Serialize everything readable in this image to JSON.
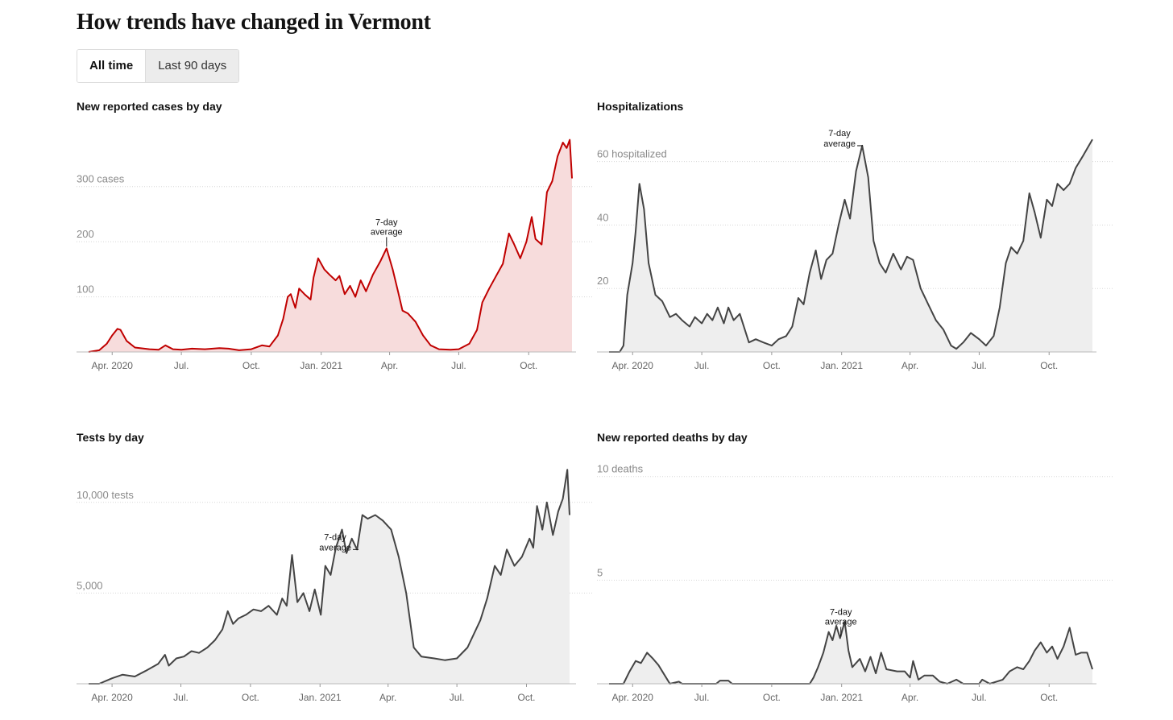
{
  "page": {
    "title": "How trends have changed in Vermont"
  },
  "toggle": {
    "options": [
      "All time",
      "Last 90 days"
    ],
    "selected": "All time"
  },
  "colors": {
    "cases_line": "#c00000",
    "cases_fill": "#f7dcdc",
    "gray_line": "#444444",
    "gray_fill": "#eeeeee",
    "grid": "#d8d8d8"
  },
  "annotation": {
    "line1": "7-day",
    "line2": "average"
  },
  "x_axis": {
    "start": "2020-03-01",
    "end": "2021-11-27",
    "ticks": [
      {
        "label": "Apr. 2020",
        "date": "2020-04-01"
      },
      {
        "label": "Jul.",
        "date": "2020-07-01"
      },
      {
        "label": "Oct.",
        "date": "2020-10-01"
      },
      {
        "label": "Jan. 2021",
        "date": "2021-01-01"
      },
      {
        "label": "Apr.",
        "date": "2021-04-01"
      },
      {
        "label": "Jul.",
        "date": "2021-07-01"
      },
      {
        "label": "Oct.",
        "date": "2021-10-01"
      }
    ]
  },
  "chart_data": [
    {
      "id": "cases",
      "type": "area",
      "title": "New reported cases by day",
      "series_name": "7-day average",
      "ylim": [
        0,
        380
      ],
      "y_ticks": [
        {
          "value": 100,
          "label": "100"
        },
        {
          "value": 200,
          "label": "200"
        },
        {
          "value": 300,
          "label": "300 cases"
        }
      ],
      "annotation_date": "2021-03-28",
      "points": [
        [
          "2020-03-01",
          0
        ],
        [
          "2020-03-15",
          3
        ],
        [
          "2020-03-25",
          15
        ],
        [
          "2020-04-01",
          30
        ],
        [
          "2020-04-08",
          42
        ],
        [
          "2020-04-12",
          40
        ],
        [
          "2020-04-20",
          20
        ],
        [
          "2020-05-01",
          8
        ],
        [
          "2020-05-20",
          5
        ],
        [
          "2020-06-01",
          4
        ],
        [
          "2020-06-10",
          12
        ],
        [
          "2020-06-20",
          5
        ],
        [
          "2020-07-01",
          4
        ],
        [
          "2020-07-15",
          6
        ],
        [
          "2020-08-01",
          5
        ],
        [
          "2020-08-20",
          7
        ],
        [
          "2020-09-01",
          6
        ],
        [
          "2020-09-15",
          3
        ],
        [
          "2020-10-01",
          5
        ],
        [
          "2020-10-15",
          12
        ],
        [
          "2020-10-25",
          10
        ],
        [
          "2020-11-05",
          30
        ],
        [
          "2020-11-12",
          60
        ],
        [
          "2020-11-18",
          100
        ],
        [
          "2020-11-22",
          105
        ],
        [
          "2020-11-28",
          80
        ],
        [
          "2020-12-03",
          115
        ],
        [
          "2020-12-10",
          105
        ],
        [
          "2020-12-18",
          95
        ],
        [
          "2020-12-22",
          135
        ],
        [
          "2020-12-28",
          170
        ],
        [
          "2021-01-05",
          150
        ],
        [
          "2021-01-12",
          140
        ],
        [
          "2021-01-20",
          130
        ],
        [
          "2021-01-25",
          138
        ],
        [
          "2021-02-01",
          105
        ],
        [
          "2021-02-08",
          120
        ],
        [
          "2021-02-15",
          100
        ],
        [
          "2021-02-22",
          130
        ],
        [
          "2021-03-01",
          110
        ],
        [
          "2021-03-10",
          140
        ],
        [
          "2021-03-20",
          165
        ],
        [
          "2021-03-28",
          188
        ],
        [
          "2021-04-05",
          150
        ],
        [
          "2021-04-12",
          110
        ],
        [
          "2021-04-18",
          75
        ],
        [
          "2021-04-25",
          70
        ],
        [
          "2021-05-05",
          55
        ],
        [
          "2021-05-15",
          30
        ],
        [
          "2021-05-25",
          12
        ],
        [
          "2021-06-05",
          5
        ],
        [
          "2021-06-20",
          4
        ],
        [
          "2021-07-01",
          5
        ],
        [
          "2021-07-15",
          15
        ],
        [
          "2021-07-25",
          40
        ],
        [
          "2021-08-01",
          90
        ],
        [
          "2021-08-10",
          115
        ],
        [
          "2021-08-20",
          140
        ],
        [
          "2021-08-28",
          160
        ],
        [
          "2021-09-05",
          215
        ],
        [
          "2021-09-12",
          195
        ],
        [
          "2021-09-20",
          170
        ],
        [
          "2021-09-28",
          200
        ],
        [
          "2021-10-05",
          245
        ],
        [
          "2021-10-10",
          205
        ],
        [
          "2021-10-18",
          195
        ],
        [
          "2021-10-25",
          290
        ],
        [
          "2021-11-01",
          310
        ],
        [
          "2021-11-08",
          355
        ],
        [
          "2021-11-15",
          380
        ],
        [
          "2021-11-20",
          370
        ],
        [
          "2021-11-24",
          385
        ],
        [
          "2021-11-27",
          315
        ]
      ]
    },
    {
      "id": "hosp",
      "type": "area",
      "title": "Hospitalizations",
      "series_name": "7-day average",
      "ylim": [
        0,
        66
      ],
      "y_ticks": [
        {
          "value": 20,
          "label": "20"
        },
        {
          "value": 40,
          "label": "40"
        },
        {
          "value": 60,
          "label": "60 hospitalized"
        }
      ],
      "annotation_date": "2021-01-30",
      "points": [
        [
          "2020-03-01",
          0
        ],
        [
          "2020-03-15",
          0
        ],
        [
          "2020-03-20",
          2
        ],
        [
          "2020-03-25",
          18
        ],
        [
          "2020-04-01",
          28
        ],
        [
          "2020-04-05",
          38
        ],
        [
          "2020-04-10",
          53
        ],
        [
          "2020-04-16",
          45
        ],
        [
          "2020-04-22",
          28
        ],
        [
          "2020-05-01",
          18
        ],
        [
          "2020-05-10",
          16
        ],
        [
          "2020-05-20",
          11
        ],
        [
          "2020-05-28",
          12
        ],
        [
          "2020-06-05",
          10
        ],
        [
          "2020-06-15",
          8
        ],
        [
          "2020-06-22",
          11
        ],
        [
          "2020-07-01",
          9
        ],
        [
          "2020-07-08",
          12
        ],
        [
          "2020-07-15",
          10
        ],
        [
          "2020-07-22",
          14
        ],
        [
          "2020-07-30",
          9
        ],
        [
          "2020-08-05",
          14
        ],
        [
          "2020-08-12",
          10
        ],
        [
          "2020-08-20",
          12
        ],
        [
          "2020-09-01",
          3
        ],
        [
          "2020-09-10",
          4
        ],
        [
          "2020-09-20",
          3
        ],
        [
          "2020-10-01",
          2
        ],
        [
          "2020-10-10",
          4
        ],
        [
          "2020-10-20",
          5
        ],
        [
          "2020-10-28",
          8
        ],
        [
          "2020-11-05",
          17
        ],
        [
          "2020-11-12",
          15
        ],
        [
          "2020-11-20",
          25
        ],
        [
          "2020-11-28",
          32
        ],
        [
          "2020-12-05",
          23
        ],
        [
          "2020-12-12",
          29
        ],
        [
          "2020-12-20",
          31
        ],
        [
          "2020-12-28",
          40
        ],
        [
          "2021-01-05",
          48
        ],
        [
          "2021-01-12",
          42
        ],
        [
          "2021-01-20",
          57
        ],
        [
          "2021-01-28",
          65
        ],
        [
          "2021-02-05",
          55
        ],
        [
          "2021-02-12",
          35
        ],
        [
          "2021-02-20",
          28
        ],
        [
          "2021-02-28",
          25
        ],
        [
          "2021-03-10",
          31
        ],
        [
          "2021-03-20",
          26
        ],
        [
          "2021-03-28",
          30
        ],
        [
          "2021-04-05",
          29
        ],
        [
          "2021-04-15",
          20
        ],
        [
          "2021-04-25",
          15
        ],
        [
          "2021-05-05",
          10
        ],
        [
          "2021-05-15",
          7
        ],
        [
          "2021-05-25",
          2
        ],
        [
          "2021-06-01",
          1
        ],
        [
          "2021-06-10",
          3
        ],
        [
          "2021-06-20",
          6
        ],
        [
          "2021-07-01",
          4
        ],
        [
          "2021-07-10",
          2
        ],
        [
          "2021-07-20",
          5
        ],
        [
          "2021-07-28",
          14
        ],
        [
          "2021-08-05",
          28
        ],
        [
          "2021-08-12",
          33
        ],
        [
          "2021-08-20",
          31
        ],
        [
          "2021-08-28",
          35
        ],
        [
          "2021-09-05",
          50
        ],
        [
          "2021-09-12",
          44
        ],
        [
          "2021-09-20",
          36
        ],
        [
          "2021-09-28",
          48
        ],
        [
          "2021-10-05",
          46
        ],
        [
          "2021-10-12",
          53
        ],
        [
          "2021-10-20",
          51
        ],
        [
          "2021-10-28",
          53
        ],
        [
          "2021-11-05",
          58
        ],
        [
          "2021-11-15",
          62
        ],
        [
          "2021-11-27",
          67
        ]
      ]
    },
    {
      "id": "tests",
      "type": "area",
      "title": "Tests by day",
      "series_name": "7-day average",
      "ylim": [
        0,
        11500
      ],
      "y_ticks": [
        {
          "value": 5000,
          "label": "5,000"
        },
        {
          "value": 10000,
          "label": "10,000 tests"
        }
      ],
      "annotation_date": "2021-02-22",
      "points": [
        [
          "2020-03-01",
          0
        ],
        [
          "2020-03-15",
          0
        ],
        [
          "2020-04-01",
          300
        ],
        [
          "2020-04-15",
          500
        ],
        [
          "2020-05-01",
          400
        ],
        [
          "2020-05-15",
          700
        ],
        [
          "2020-06-01",
          1100
        ],
        [
          "2020-06-10",
          1600
        ],
        [
          "2020-06-15",
          1000
        ],
        [
          "2020-06-25",
          1400
        ],
        [
          "2020-07-05",
          1500
        ],
        [
          "2020-07-15",
          1800
        ],
        [
          "2020-07-25",
          1700
        ],
        [
          "2020-08-05",
          2000
        ],
        [
          "2020-08-15",
          2400
        ],
        [
          "2020-08-25",
          3000
        ],
        [
          "2020-09-01",
          4000
        ],
        [
          "2020-09-08",
          3300
        ],
        [
          "2020-09-15",
          3600
        ],
        [
          "2020-09-25",
          3800
        ],
        [
          "2020-10-05",
          4100
        ],
        [
          "2020-10-15",
          4000
        ],
        [
          "2020-10-25",
          4300
        ],
        [
          "2020-11-05",
          3800
        ],
        [
          "2020-11-12",
          4700
        ],
        [
          "2020-11-18",
          4300
        ],
        [
          "2020-11-25",
          7100
        ],
        [
          "2020-12-02",
          4500
        ],
        [
          "2020-12-10",
          5000
        ],
        [
          "2020-12-18",
          4000
        ],
        [
          "2020-12-25",
          5200
        ],
        [
          "2021-01-02",
          3800
        ],
        [
          "2021-01-08",
          6500
        ],
        [
          "2021-01-15",
          6000
        ],
        [
          "2021-01-22",
          7500
        ],
        [
          "2021-01-30",
          8500
        ],
        [
          "2021-02-05",
          7200
        ],
        [
          "2021-02-12",
          8000
        ],
        [
          "2021-02-19",
          7400
        ],
        [
          "2021-02-26",
          9300
        ],
        [
          "2021-03-05",
          9100
        ],
        [
          "2021-03-15",
          9300
        ],
        [
          "2021-03-25",
          9000
        ],
        [
          "2021-04-05",
          8500
        ],
        [
          "2021-04-15",
          7000
        ],
        [
          "2021-04-25",
          5000
        ],
        [
          "2021-05-05",
          2000
        ],
        [
          "2021-05-15",
          1500
        ],
        [
          "2021-06-01",
          1400
        ],
        [
          "2021-06-15",
          1300
        ],
        [
          "2021-07-01",
          1400
        ],
        [
          "2021-07-15",
          2000
        ],
        [
          "2021-08-01",
          3500
        ],
        [
          "2021-08-10",
          4700
        ],
        [
          "2021-08-20",
          6500
        ],
        [
          "2021-08-28",
          6000
        ],
        [
          "2021-09-05",
          7400
        ],
        [
          "2021-09-15",
          6500
        ],
        [
          "2021-09-25",
          7000
        ],
        [
          "2021-10-05",
          8000
        ],
        [
          "2021-10-10",
          7500
        ],
        [
          "2021-10-15",
          9800
        ],
        [
          "2021-10-22",
          8500
        ],
        [
          "2021-10-28",
          10000
        ],
        [
          "2021-11-05",
          8200
        ],
        [
          "2021-11-12",
          9500
        ],
        [
          "2021-11-18",
          10200
        ],
        [
          "2021-11-24",
          11800
        ],
        [
          "2021-11-27",
          9300
        ]
      ]
    },
    {
      "id": "deaths",
      "type": "area",
      "title": "New reported deaths by day",
      "series_name": "7-day average",
      "ylim": [
        0,
        10.3
      ],
      "y_ticks": [
        {
          "value": 5,
          "label": "5"
        },
        {
          "value": 10,
          "label": "10 deaths"
        }
      ],
      "annotation_date": "2020-12-31",
      "points": [
        [
          "2020-03-01",
          0
        ],
        [
          "2020-03-20",
          0
        ],
        [
          "2020-03-28",
          0.6
        ],
        [
          "2020-04-05",
          1.1
        ],
        [
          "2020-04-12",
          1.0
        ],
        [
          "2020-04-20",
          1.5
        ],
        [
          "2020-04-28",
          1.2
        ],
        [
          "2020-05-05",
          0.9
        ],
        [
          "2020-05-15",
          0.3
        ],
        [
          "2020-05-20",
          0
        ],
        [
          "2020-06-01",
          0.1
        ],
        [
          "2020-06-05",
          0
        ],
        [
          "2020-07-01",
          0
        ],
        [
          "2020-07-20",
          0
        ],
        [
          "2020-07-25",
          0.15
        ],
        [
          "2020-08-05",
          0.15
        ],
        [
          "2020-08-10",
          0
        ],
        [
          "2020-11-20",
          0
        ],
        [
          "2020-11-25",
          0.3
        ],
        [
          "2020-12-01",
          0.8
        ],
        [
          "2020-12-08",
          1.5
        ],
        [
          "2020-12-15",
          2.5
        ],
        [
          "2020-12-20",
          2.1
        ],
        [
          "2020-12-25",
          2.8
        ],
        [
          "2020-12-30",
          2.2
        ],
        [
          "2021-01-05",
          3.0
        ],
        [
          "2021-01-10",
          1.6
        ],
        [
          "2021-01-15",
          0.8
        ],
        [
          "2021-01-25",
          1.2
        ],
        [
          "2021-02-01",
          0.6
        ],
        [
          "2021-02-08",
          1.3
        ],
        [
          "2021-02-15",
          0.5
        ],
        [
          "2021-02-22",
          1.5
        ],
        [
          "2021-03-01",
          0.7
        ],
        [
          "2021-03-15",
          0.6
        ],
        [
          "2021-03-25",
          0.6
        ],
        [
          "2021-04-01",
          0.3
        ],
        [
          "2021-04-05",
          1.1
        ],
        [
          "2021-04-12",
          0.2
        ],
        [
          "2021-04-20",
          0.4
        ],
        [
          "2021-05-01",
          0.4
        ],
        [
          "2021-05-10",
          0.1
        ],
        [
          "2021-05-20",
          0
        ],
        [
          "2021-06-01",
          0.2
        ],
        [
          "2021-06-10",
          0
        ],
        [
          "2021-07-01",
          0
        ],
        [
          "2021-07-05",
          0.2
        ],
        [
          "2021-07-15",
          0
        ],
        [
          "2021-08-01",
          0.2
        ],
        [
          "2021-08-10",
          0.6
        ],
        [
          "2021-08-20",
          0.8
        ],
        [
          "2021-08-28",
          0.7
        ],
        [
          "2021-09-05",
          1.1
        ],
        [
          "2021-09-12",
          1.6
        ],
        [
          "2021-09-20",
          2.0
        ],
        [
          "2021-09-28",
          1.5
        ],
        [
          "2021-10-05",
          1.8
        ],
        [
          "2021-10-12",
          1.2
        ],
        [
          "2021-10-20",
          1.8
        ],
        [
          "2021-10-28",
          2.7
        ],
        [
          "2021-11-05",
          1.4
        ],
        [
          "2021-11-12",
          1.5
        ],
        [
          "2021-11-20",
          1.5
        ],
        [
          "2021-11-27",
          0.7
        ]
      ]
    }
  ]
}
